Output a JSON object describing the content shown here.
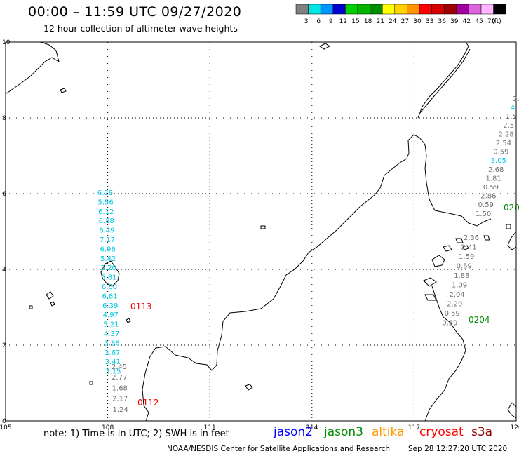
{
  "header": {
    "title": "00:00 – 11:59 UTC 09/27/2020",
    "subtitle": "12 hour collection of altimeter wave heights"
  },
  "color_scale": {
    "unit": "(ft)",
    "bins": [
      {
        "color": "#808080",
        "label": "3"
      },
      {
        "color": "#00e6e6",
        "label": "6"
      },
      {
        "color": "#0096ff",
        "label": "9"
      },
      {
        "color": "#0000d0",
        "label": "12"
      },
      {
        "color": "#00d000",
        "label": "15"
      },
      {
        "color": "#00b400",
        "label": "18"
      },
      {
        "color": "#008c00",
        "label": "21"
      },
      {
        "color": "#ffff00",
        "label": "24"
      },
      {
        "color": "#ffd200",
        "label": "27"
      },
      {
        "color": "#ff9600",
        "label": "30"
      },
      {
        "color": "#ff0000",
        "label": "33"
      },
      {
        "color": "#d20000",
        "label": "36"
      },
      {
        "color": "#a00000",
        "label": "39"
      },
      {
        "color": "#a000a0",
        "label": "42"
      },
      {
        "color": "#dc64dc",
        "label": "45"
      },
      {
        "color": "#ffb4ff",
        "label": "70"
      },
      {
        "color": "#000000",
        "label": ""
      }
    ]
  },
  "map": {
    "lon_labels": [
      "105",
      "108",
      "111",
      "114",
      "117",
      "120"
    ],
    "lat_labels": [
      "0",
      "2",
      "4",
      "6",
      "8",
      "10"
    ],
    "tracks": [
      {
        "name": "cryosat-track-0113",
        "pass_label": "0113",
        "pass_label_color": "#ff0000",
        "points": [
          {
            "v": "6.28",
            "c": "#00c8e6"
          },
          {
            "v": "5.56",
            "c": "#00c8e6"
          },
          {
            "v": "6.12",
            "c": "#00c8e6"
          },
          {
            "v": "6.88",
            "c": "#00c8e6"
          },
          {
            "v": "6.49",
            "c": "#00c8e6"
          },
          {
            "v": "7.17",
            "c": "#00c8e6"
          },
          {
            "v": "6.96",
            "c": "#00c8e6"
          },
          {
            "v": "5.42",
            "c": "#00c8e6"
          },
          {
            "v": "5.20",
            "c": "#00c8e6"
          },
          {
            "v": "5.81",
            "c": "#00c8e6"
          },
          {
            "v": "6.60",
            "c": "#00c8e6"
          },
          {
            "v": "6.81",
            "c": "#00c8e6"
          },
          {
            "v": "6.39",
            "c": "#00c8e6"
          },
          {
            "v": "4.97",
            "c": "#00c8e6"
          },
          {
            "v": "5.21",
            "c": "#00c8e6"
          },
          {
            "v": "4.37",
            "c": "#00c8e6"
          },
          {
            "v": "3.86",
            "c": "#00c8e6"
          },
          {
            "v": "3.67",
            "c": "#00c8e6"
          },
          {
            "v": "3.41",
            "c": "#00c8e6"
          },
          {
            "v": "3.15",
            "c": "#00c8e6"
          }
        ]
      },
      {
        "name": "cryosat-track-0112",
        "pass_label": "0112",
        "pass_label_color": "#ff0000",
        "points": [
          {
            "v": "2.45",
            "c": "#707070"
          },
          {
            "v": "2.77",
            "c": "#707070"
          },
          {
            "v": "1.68",
            "c": "#707070"
          },
          {
            "v": "2.17",
            "c": "#707070"
          },
          {
            "v": "1.24",
            "c": "#707070"
          }
        ]
      },
      {
        "name": "jason3-track-0204",
        "pass_label": "0204",
        "pass_label_color": "#008c00",
        "points": [
          {
            "v": "2.36",
            "c": "#707070"
          },
          {
            "v": "2.41",
            "c": "#707070"
          },
          {
            "v": "1.59",
            "c": "#707070"
          },
          {
            "v": "0.59",
            "c": "#707070"
          },
          {
            "v": "1.88",
            "c": "#707070"
          },
          {
            "v": "1.09",
            "c": "#707070"
          },
          {
            "v": "2.04",
            "c": "#707070"
          },
          {
            "v": "2.29",
            "c": "#707070"
          },
          {
            "v": "0.59",
            "c": "#707070"
          },
          {
            "v": "0.59",
            "c": "#707070"
          }
        ]
      },
      {
        "name": "jason3-track-020",
        "pass_label": "020",
        "pass_label_color": "#008c00",
        "points": [
          {
            "v": "2.",
            "c": "#707070"
          },
          {
            "v": "4.",
            "c": "#00c8e6"
          },
          {
            "v": "1.5",
            "c": "#707070"
          },
          {
            "v": "2.5",
            "c": "#707070"
          },
          {
            "v": "2.28",
            "c": "#707070"
          },
          {
            "v": "2.54",
            "c": "#707070"
          },
          {
            "v": "0.59",
            "c": "#707070"
          },
          {
            "v": "3.05",
            "c": "#00c8e6"
          },
          {
            "v": "2.68",
            "c": "#707070"
          },
          {
            "v": "1.81",
            "c": "#707070"
          },
          {
            "v": "0.59",
            "c": "#707070"
          },
          {
            "v": "2.86",
            "c": "#707070"
          },
          {
            "v": "0.59",
            "c": "#707070"
          },
          {
            "v": "1.50",
            "c": "#707070"
          }
        ]
      }
    ]
  },
  "note": "note: 1) Time is in UTC; 2) SWH is in feet",
  "satellites": [
    {
      "name": "jason2",
      "color": "#0000ff"
    },
    {
      "name": "jason3",
      "color": "#008c00"
    },
    {
      "name": "altika",
      "color": "#ff9600"
    },
    {
      "name": "cryosat",
      "color": "#ff0000"
    },
    {
      "name": "s3a",
      "color": "#8b0000"
    }
  ],
  "footer": {
    "credit": "NOAA/NESDIS Center for Satellite Applications and Research",
    "timestamp": "Sep 28 12:27:20 UTC 2020"
  }
}
